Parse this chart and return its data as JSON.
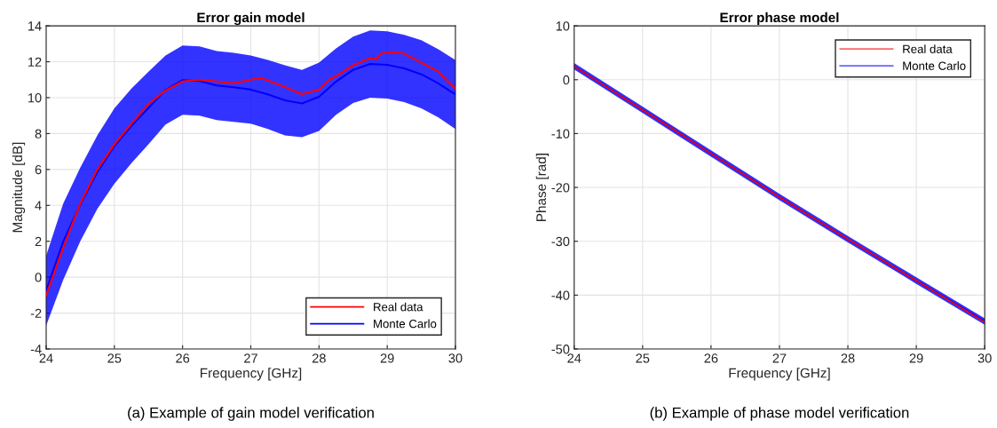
{
  "chart_data": [
    {
      "type": "line",
      "title": "Error gain model",
      "xlabel": "Frequency [GHz]",
      "ylabel": "Magnitude [dB]",
      "xlim": [
        24,
        30
      ],
      "xticks": [
        24,
        25,
        26,
        27,
        28,
        29,
        30
      ],
      "ylim": [
        -4,
        14
      ],
      "yticks": [
        -4,
        -2,
        0,
        2,
        4,
        6,
        8,
        10,
        12,
        14
      ],
      "grid": true,
      "legend": "bottom right",
      "annotations": [
        "(a) Example of gain model verification"
      ],
      "series": [
        {
          "name": "Real data",
          "color": "#ff0000",
          "x": [
            24,
            24.25,
            24.5,
            24.75,
            25,
            25.25,
            25.5,
            25.75,
            26,
            26.25,
            26.5,
            26.75,
            27,
            27.15,
            27.5,
            27.75,
            28,
            28.15,
            28.25,
            28.5,
            28.75,
            28.85,
            28.9,
            29.1,
            29.25,
            29.5,
            29.75,
            30
          ],
          "values": [
            -1.0,
            1.65,
            4.1,
            6.0,
            7.4,
            8.55,
            9.65,
            10.4,
            10.9,
            11.0,
            10.9,
            10.8,
            11.0,
            11.1,
            10.6,
            10.2,
            10.45,
            11.0,
            11.2,
            11.8,
            12.2,
            12.15,
            12.45,
            12.55,
            12.45,
            11.95,
            11.45,
            10.5
          ]
        },
        {
          "name": "Monte Carlo",
          "color": "#0000ff",
          "x": [
            24,
            24.25,
            24.5,
            24.75,
            25,
            25.25,
            25.5,
            25.75,
            26,
            26.25,
            26.5,
            26.75,
            27,
            27.25,
            27.5,
            27.75,
            28,
            28.25,
            28.5,
            28.75,
            29,
            29.25,
            29.5,
            29.75,
            30
          ],
          "values": [
            -0.75,
            1.98,
            4.05,
            5.85,
            7.3,
            8.43,
            9.43,
            10.43,
            10.98,
            10.93,
            10.68,
            10.58,
            10.45,
            10.18,
            9.85,
            9.68,
            10.05,
            10.9,
            11.55,
            11.88,
            11.83,
            11.63,
            11.3,
            10.8,
            10.18
          ],
          "upper": [
            1.2,
            4.1,
            6.1,
            7.9,
            9.4,
            10.5,
            11.45,
            12.35,
            12.9,
            12.85,
            12.6,
            12.5,
            12.35,
            12.1,
            11.8,
            11.55,
            11.95,
            12.75,
            13.4,
            13.75,
            13.7,
            13.5,
            13.2,
            12.7,
            12.1
          ],
          "lower": [
            -2.7,
            -0.15,
            2.0,
            3.8,
            5.2,
            6.35,
            7.4,
            8.5,
            9.05,
            9.0,
            8.75,
            8.65,
            8.55,
            8.25,
            7.9,
            7.8,
            8.15,
            9.05,
            9.7,
            10.0,
            9.95,
            9.75,
            9.4,
            8.9,
            8.25
          ]
        }
      ]
    },
    {
      "type": "line",
      "title": "Error phase model",
      "xlabel": "Frequency [GHz]",
      "ylabel": "Phase [rad]",
      "xlim": [
        24,
        30
      ],
      "xticks": [
        24,
        25,
        26,
        27,
        28,
        29,
        30
      ],
      "ylim": [
        -50,
        10
      ],
      "yticks": [
        -50,
        -40,
        -30,
        -20,
        -10,
        0,
        10
      ],
      "grid": true,
      "legend": "top right",
      "annotations": [
        "(b) Example of phase model verification"
      ],
      "series": [
        {
          "name": "Real data",
          "color": "#ff0000",
          "x": [
            24,
            25,
            26,
            27,
            28,
            29,
            30
          ],
          "values": [
            2.5,
            -5.6,
            -13.7,
            -21.8,
            -29.6,
            -37.3,
            -45.0
          ]
        },
        {
          "name": "Monte Carlo",
          "color": "#0000ff",
          "x": [
            24,
            25,
            26,
            27,
            28,
            29,
            30
          ],
          "values": [
            2.5,
            -5.6,
            -13.7,
            -21.8,
            -29.6,
            -37.3,
            -44.9
          ],
          "upper": [
            3.1,
            -5.0,
            -13.1,
            -21.2,
            -29.0,
            -36.7,
            -44.3
          ],
          "lower": [
            1.9,
            -6.2,
            -14.3,
            -22.4,
            -30.2,
            -37.9,
            -45.5
          ]
        }
      ]
    }
  ]
}
